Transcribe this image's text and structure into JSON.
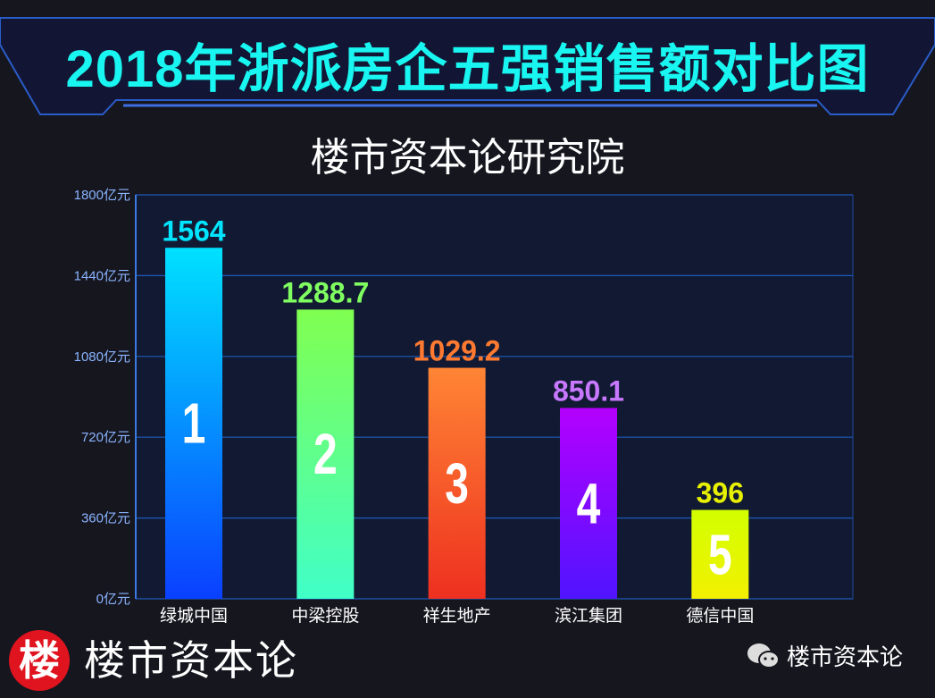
{
  "title": "2018年浙派房企五强销售额对比图",
  "subtitle": "楼市资本论研究院",
  "footer": {
    "logo_char": "楼",
    "brand": "楼市资本论",
    "wechat_name": "楼市资本论"
  },
  "chart_data": {
    "type": "bar",
    "title": "2018年浙派房企五强销售额对比图",
    "xlabel": "",
    "ylabel": "",
    "ylim": [
      0,
      1800
    ],
    "yticks": [
      0,
      360,
      720,
      1080,
      1440,
      1800
    ],
    "ytick_suffix": "亿元",
    "grid": true,
    "categories": [
      "绿城中国",
      "中梁控股",
      "祥生地产",
      "滨江集团",
      "德信中国"
    ],
    "values": [
      1564,
      1288.7,
      1029.2,
      850.1,
      396
    ],
    "value_labels": [
      "1564",
      "1288.7",
      "1029.2",
      "850.1",
      "396"
    ],
    "ranks": [
      "1",
      "2",
      "3",
      "4",
      "5"
    ],
    "colors": [
      {
        "top": "#00e1ff",
        "bottom": "#0a40ff",
        "label": "#00e5ff"
      },
      {
        "top": "#80ff50",
        "bottom": "#40ffc8",
        "label": "#80ff60"
      },
      {
        "top": "#ff8534",
        "bottom": "#ee3020",
        "label": "#ff7a30"
      },
      {
        "top": "#b400ff",
        "bottom": "#5014ff",
        "label": "#c878ff"
      },
      {
        "top": "#d2ff00",
        "bottom": "#f2f000",
        "label": "#e6f000"
      }
    ]
  }
}
